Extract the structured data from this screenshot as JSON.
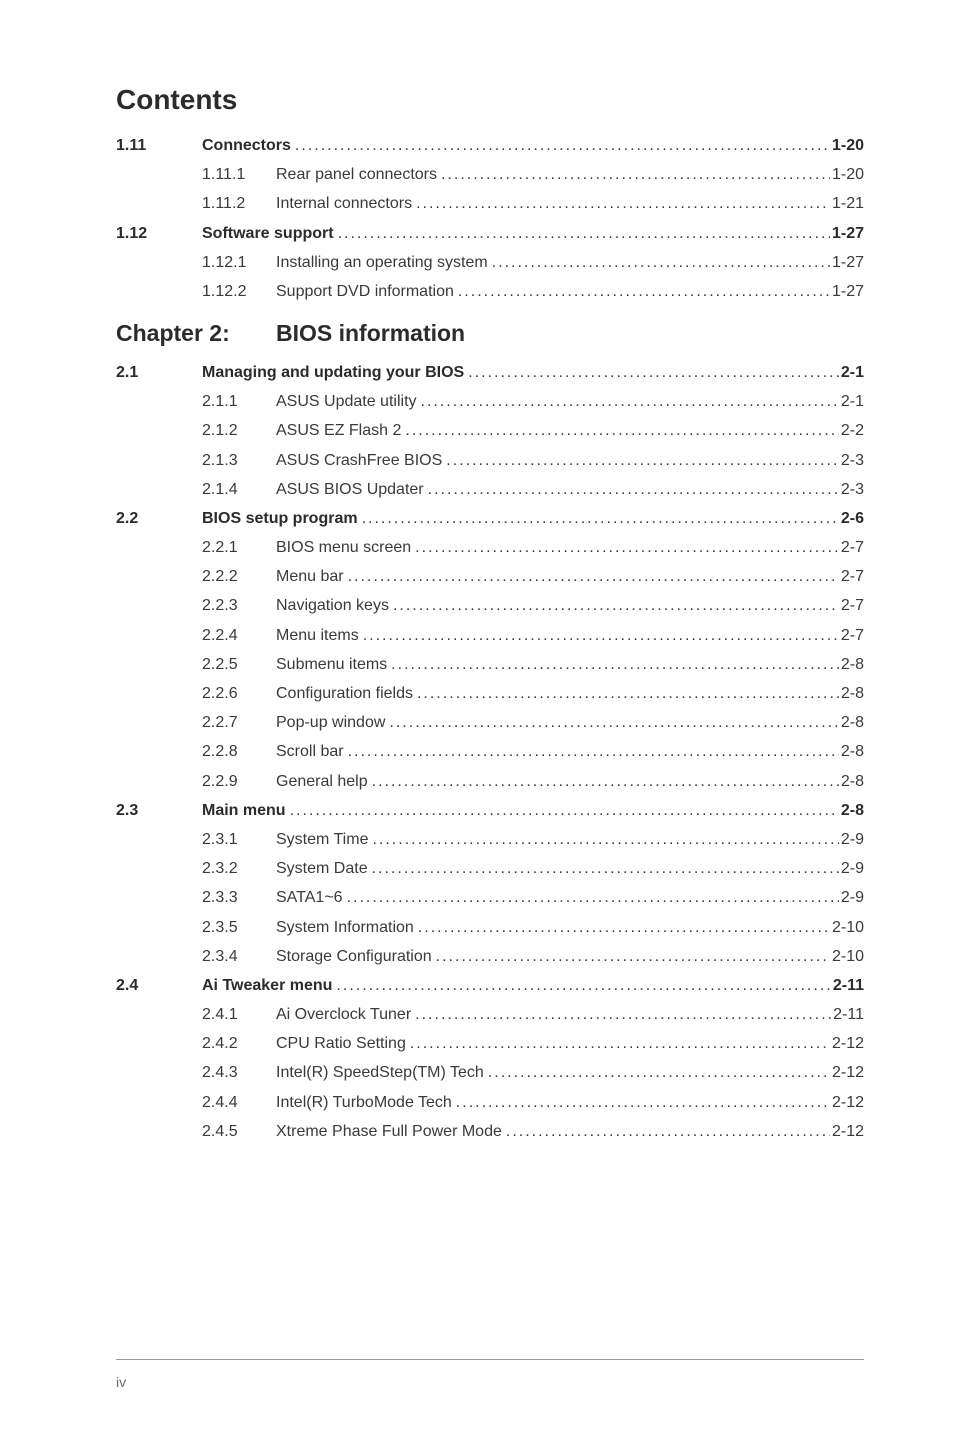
{
  "title": "Contents",
  "chapter": {
    "label": "Chapter 2:",
    "title": "BIOS information"
  },
  "footer_page": "iv",
  "entries": [
    {
      "num": "1.11",
      "sub": "",
      "label": "Connectors",
      "page": "1-20",
      "bold": true,
      "indent": 0
    },
    {
      "num": "",
      "sub": "1.11.1",
      "label": "Rear panel connectors",
      "page": "1-20",
      "bold": false,
      "indent": 1
    },
    {
      "num": "",
      "sub": "1.11.2",
      "label": "Internal connectors",
      "page": "1-21",
      "bold": false,
      "indent": 1
    },
    {
      "num": "1.12",
      "sub": "",
      "label": "Software support",
      "page": "1-27",
      "bold": true,
      "indent": 0
    },
    {
      "num": "",
      "sub": "1.12.1",
      "label": "Installing an operating system",
      "page": "1-27",
      "bold": false,
      "indent": 1
    },
    {
      "num": "",
      "sub": "1.12.2",
      "label": "Support DVD information",
      "page": "1-27",
      "bold": false,
      "indent": 1
    },
    {
      "type": "chapter"
    },
    {
      "num": "2.1",
      "sub": "",
      "label": "Managing and updating your BIOS",
      "page": "2-1",
      "bold": true,
      "indent": 0
    },
    {
      "num": "",
      "sub": "2.1.1",
      "label": "ASUS Update utility",
      "page": "2-1",
      "bold": false,
      "indent": 1
    },
    {
      "num": "",
      "sub": "2.1.2",
      "label": "ASUS EZ Flash 2",
      "page": "2-2",
      "bold": false,
      "indent": 1
    },
    {
      "num": "",
      "sub": "2.1.3",
      "label": "ASUS CrashFree BIOS",
      "page": "2-3",
      "bold": false,
      "indent": 1
    },
    {
      "num": "",
      "sub": "2.1.4",
      "label": "ASUS BIOS Updater",
      "page": "2-3",
      "bold": false,
      "indent": 1
    },
    {
      "num": "2.2",
      "sub": "",
      "label": "BIOS setup program",
      "page": "2-6",
      "bold": true,
      "indent": 0
    },
    {
      "num": "",
      "sub": "2.2.1",
      "label": "BIOS menu screen",
      "page": "2-7",
      "bold": false,
      "indent": 1
    },
    {
      "num": "",
      "sub": "2.2.2",
      "label": "Menu bar",
      "page": "2-7",
      "bold": false,
      "indent": 1
    },
    {
      "num": "",
      "sub": "2.2.3",
      "label": "Navigation keys",
      "page": "2-7",
      "bold": false,
      "indent": 1
    },
    {
      "num": "",
      "sub": "2.2.4",
      "label": "Menu items",
      "page": "2-7",
      "bold": false,
      "indent": 1
    },
    {
      "num": "",
      "sub": "2.2.5",
      "label": "Submenu items",
      "page": "2-8",
      "bold": false,
      "indent": 1
    },
    {
      "num": "",
      "sub": "2.2.6",
      "label": "Configuration fields",
      "page": "2-8",
      "bold": false,
      "indent": 1
    },
    {
      "num": "",
      "sub": "2.2.7",
      "label": "Pop-up window",
      "page": "2-8",
      "bold": false,
      "indent": 1
    },
    {
      "num": "",
      "sub": "2.2.8",
      "label": "Scroll bar",
      "page": "2-8",
      "bold": false,
      "indent": 1
    },
    {
      "num": "",
      "sub": "2.2.9",
      "label": "General help",
      "page": "2-8",
      "bold": false,
      "indent": 1
    },
    {
      "num": "2.3",
      "sub": "",
      "label": "Main menu",
      "page": "2-8",
      "bold": true,
      "indent": 0
    },
    {
      "num": "",
      "sub": "2.3.1",
      "label": "System Time",
      "page": "2-9",
      "bold": false,
      "indent": 1
    },
    {
      "num": "",
      "sub": "2.3.2",
      "label": "System Date",
      "page": "2-9",
      "bold": false,
      "indent": 1
    },
    {
      "num": "",
      "sub": "2.3.3",
      "label": "SATA1~6",
      "page": "2-9",
      "bold": false,
      "indent": 1
    },
    {
      "num": "",
      "sub": "2.3.5",
      "label": "System Information",
      "page": "2-10",
      "bold": false,
      "indent": 1
    },
    {
      "num": "",
      "sub": "2.3.4",
      "label": "Storage Configuration",
      "page": "2-10",
      "bold": false,
      "indent": 1
    },
    {
      "num": "2.4",
      "sub": "",
      "label": "Ai Tweaker menu",
      "page": "2-11",
      "bold": true,
      "indent": 0
    },
    {
      "num": "",
      "sub": "2.4.1",
      "label": "Ai Overclock Tuner",
      "page": "2-11",
      "bold": false,
      "indent": 1
    },
    {
      "num": "",
      "sub": "2.4.2",
      "label": "CPU Ratio Setting",
      "page": "2-12",
      "bold": false,
      "indent": 1
    },
    {
      "num": "",
      "sub": "2.4.3",
      "label": "Intel(R) SpeedStep(TM) Tech",
      "page": "2-12",
      "bold": false,
      "indent": 1
    },
    {
      "num": "",
      "sub": "2.4.4",
      "label": "Intel(R) TurboMode Tech",
      "page": "2-12",
      "bold": false,
      "indent": 1
    },
    {
      "num": "",
      "sub": "2.4.5",
      "label": "Xtreme Phase Full Power Mode",
      "page": "2-12",
      "bold": false,
      "indent": 1
    }
  ]
}
